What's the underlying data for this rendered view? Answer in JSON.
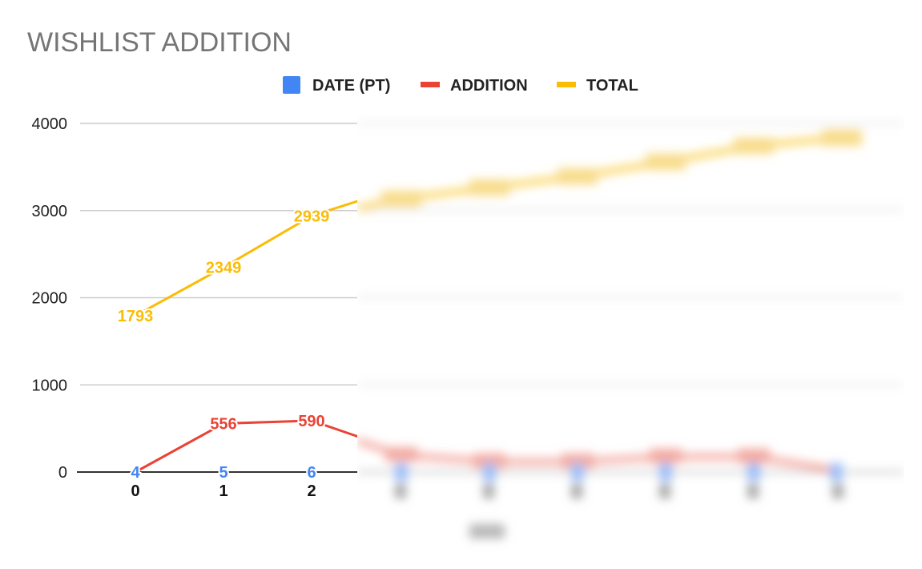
{
  "chart_data": {
    "type": "line",
    "title": "WISHLIST ADDITION",
    "legend_position": "top",
    "grid": true,
    "legend": [
      {
        "label": "DATE (PT)",
        "color": "#4285f4",
        "symbol": "square"
      },
      {
        "label": "ADDITION",
        "color": "#ea4335",
        "symbol": "line"
      },
      {
        "label": "TOTAL",
        "color": "#fbbc04",
        "symbol": "line"
      }
    ],
    "x": [
      0,
      1,
      2
    ],
    "x_tick_labels": [
      "0",
      "1",
      "2"
    ],
    "ylim": [
      0,
      4000
    ],
    "y_ticks": [
      "0",
      "1000",
      "2000",
      "3000",
      "4000"
    ],
    "series": [
      {
        "name": "DATE (PT)",
        "color": "#4285f4",
        "values": [
          4,
          5,
          6
        ],
        "labels": [
          "4",
          "5",
          "6"
        ]
      },
      {
        "name": "ADDITION",
        "color": "#ea4335",
        "values": [
          0,
          556,
          590
        ],
        "labels": [
          "",
          "556",
          "590"
        ]
      },
      {
        "name": "TOTAL",
        "color": "#fbbc04",
        "values": [
          1793,
          2349,
          2939
        ],
        "labels": [
          "1793",
          "2349",
          "2939"
        ]
      }
    ],
    "obscured_region": "right portion of the plot is blurred"
  }
}
